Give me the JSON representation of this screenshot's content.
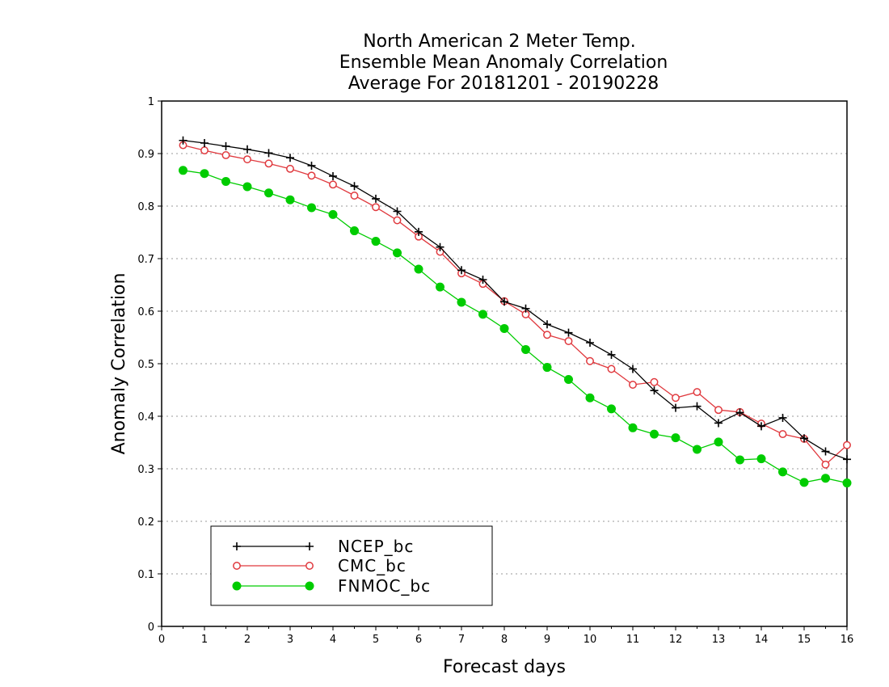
{
  "chart_data": {
    "type": "line",
    "title_lines": [
      "North American 2 Meter Temp.",
      "Ensemble Mean Anomaly Correlation",
      "Average For 20181201 - 20190228"
    ],
    "xlabel": "Forecast days",
    "ylabel": "Anomaly Correlation",
    "xlim": [
      0,
      16
    ],
    "ylim": [
      0,
      1
    ],
    "x_ticks": [
      "0",
      "1",
      "2",
      "3",
      "4",
      "5",
      "6",
      "7",
      "8",
      "9",
      "10",
      "11",
      "12",
      "13",
      "14",
      "15",
      "16"
    ],
    "y_ticks": [
      "0",
      "0.1",
      "0.2",
      "0.3",
      "0.4",
      "0.5",
      "0.6",
      "0.7",
      "0.8",
      "0.9",
      "1"
    ],
    "grid": "horizontal dotted",
    "legend_position": "bottom-left",
    "x": [
      0.5,
      1,
      1.5,
      2,
      2.5,
      3,
      3.5,
      4,
      4.5,
      5,
      5.5,
      6,
      6.5,
      7,
      7.5,
      8,
      8.5,
      9,
      9.5,
      10,
      10.5,
      11,
      11.5,
      12,
      12.5,
      13,
      13.5,
      14,
      14.5,
      15,
      15.5,
      16
    ],
    "series": [
      {
        "name": "NCEP_bc",
        "color": "#000000",
        "marker": "plus",
        "values": [
          0.925,
          0.92,
          0.914,
          0.908,
          0.901,
          0.892,
          0.877,
          0.857,
          0.838,
          0.814,
          0.79,
          0.751,
          0.722,
          0.678,
          0.66,
          0.618,
          0.605,
          0.575,
          0.559,
          0.54,
          0.517,
          0.49,
          0.449,
          0.416,
          0.419,
          0.387,
          0.407,
          0.381,
          0.397,
          0.358,
          0.333,
          0.318
        ]
      },
      {
        "name": "CMC_bc",
        "color": "#e0393e",
        "marker": "open-circle",
        "values": [
          0.916,
          0.906,
          0.897,
          0.889,
          0.881,
          0.871,
          0.858,
          0.841,
          0.82,
          0.798,
          0.773,
          0.742,
          0.713,
          0.672,
          0.652,
          0.619,
          0.594,
          0.555,
          0.543,
          0.505,
          0.49,
          0.46,
          0.465,
          0.435,
          0.446,
          0.412,
          0.408,
          0.386,
          0.366,
          0.357,
          0.308,
          0.345
        ]
      },
      {
        "name": "FNMOC_bc",
        "color": "#00cc00",
        "marker": "filled-circle",
        "values": [
          0.868,
          0.862,
          0.847,
          0.837,
          0.825,
          0.812,
          0.797,
          0.784,
          0.753,
          0.733,
          0.711,
          0.68,
          0.646,
          0.617,
          0.594,
          0.567,
          0.527,
          0.493,
          0.47,
          0.435,
          0.414,
          0.378,
          0.366,
          0.359,
          0.337,
          0.351,
          0.317,
          0.319,
          0.294,
          0.274,
          0.282,
          0.273
        ]
      }
    ]
  }
}
